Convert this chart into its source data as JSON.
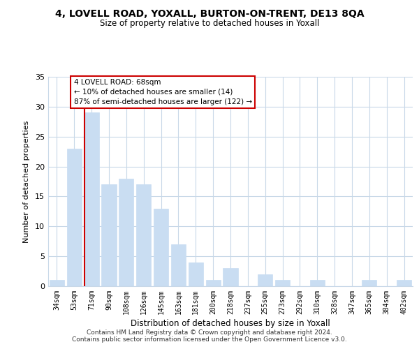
{
  "title": "4, LOVELL ROAD, YOXALL, BURTON-ON-TRENT, DE13 8QA",
  "subtitle": "Size of property relative to detached houses in Yoxall",
  "xlabel": "Distribution of detached houses by size in Yoxall",
  "ylabel": "Number of detached properties",
  "bar_labels": [
    "34sqm",
    "53sqm",
    "71sqm",
    "90sqm",
    "108sqm",
    "126sqm",
    "145sqm",
    "163sqm",
    "181sqm",
    "200sqm",
    "218sqm",
    "237sqm",
    "255sqm",
    "273sqm",
    "292sqm",
    "310sqm",
    "328sqm",
    "347sqm",
    "365sqm",
    "384sqm",
    "402sqm"
  ],
  "bar_values": [
    1,
    23,
    29,
    17,
    18,
    17,
    13,
    7,
    4,
    1,
    3,
    0,
    2,
    1,
    0,
    1,
    0,
    0,
    1,
    0,
    1
  ],
  "bar_color": "#c9ddf2",
  "marker_bar_index": 2,
  "marker_color": "#cc0000",
  "ylim": [
    0,
    35
  ],
  "yticks": [
    0,
    5,
    10,
    15,
    20,
    25,
    30,
    35
  ],
  "annotation_line1": "4 LOVELL ROAD: 68sqm",
  "annotation_line2": "← 10% of detached houses are smaller (14)",
  "annotation_line3": "87% of semi-detached houses are larger (122) →",
  "footer1": "Contains HM Land Registry data © Crown copyright and database right 2024.",
  "footer2": "Contains public sector information licensed under the Open Government Licence v3.0.",
  "background_color": "#ffffff",
  "grid_color": "#c8d8e8"
}
